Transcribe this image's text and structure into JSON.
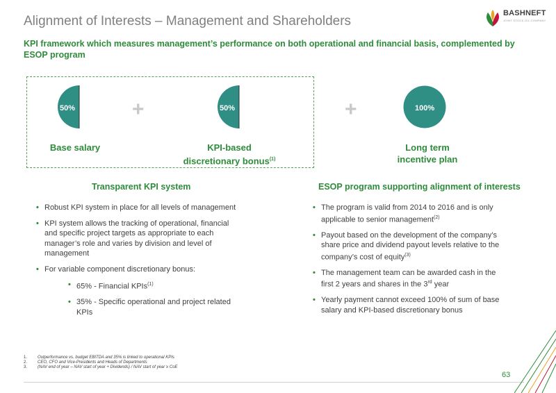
{
  "title": "Alignment of Interests – Management and Shareholders",
  "logo": {
    "name": "BASHNEFT",
    "tagline": "JOINT STOCK OIL COMPANY"
  },
  "subtitle": "KPI framework which measures management’s performance on both operational and financial basis, complemented by ESOP program",
  "components": [
    {
      "percent": "50%",
      "label": "Base salary"
    },
    {
      "percent": "50%",
      "label_line1": "KPI-based",
      "label_line2": "discretionary bonus",
      "label_sup": "(1)"
    },
    {
      "percent": "100%",
      "label_line1": "Long term",
      "label_line2": "incentive plan"
    }
  ],
  "colors": {
    "accent": "#2e8b3a",
    "pie": "#2f8f84",
    "title": "#808080"
  },
  "left_section": {
    "heading": "Transparent KPI system",
    "bullets": [
      "Robust KPI system in place for all levels of management",
      "KPI system allows the tracking of operational, financial and specific project targets as appropriate to each manager’s role and varies by division and level of management",
      "For variable component discretionary bonus:"
    ],
    "sub_bullets": [
      {
        "text": "65% - Financial KPIs",
        "sup": "(1)"
      },
      {
        "text": "35% - Specific operational and project related KPIs",
        "sup": ""
      }
    ]
  },
  "right_section": {
    "heading": "ESOP program supporting alignment of interests",
    "bullets": [
      {
        "text": "The program is valid from 2014 to 2016 and is only applicable to senior management",
        "sup": "(2)",
        "tail": ""
      },
      {
        "text": "Payout based on the development of the company’s share price and dividend payout levels relative to the company’s cost of equity",
        "sup": "(3)",
        "tail": ""
      },
      {
        "text": "The management team can be awarded cash in the first 2 years and shares in the 3",
        "sup": "rd",
        "tail": " year"
      },
      {
        "text": "Yearly payment cannot exceed 100% of sum of base salary and KPI-based discretionary bonus",
        "sup": "",
        "tail": ""
      }
    ]
  },
  "footnotes": [
    {
      "num": "1.",
      "text": "Outperformance vs. budget EBITDA and 35% is linked to operational KPIs"
    },
    {
      "num": "2.",
      "text": "CEO, CFO and Vice-Presidents and Heads of Departments"
    },
    {
      "num": "3.",
      "text": "(NAV end of year – NAV start of year + Dividends) / NAV start of year ≥ CoE"
    }
  ],
  "page_number": "63"
}
